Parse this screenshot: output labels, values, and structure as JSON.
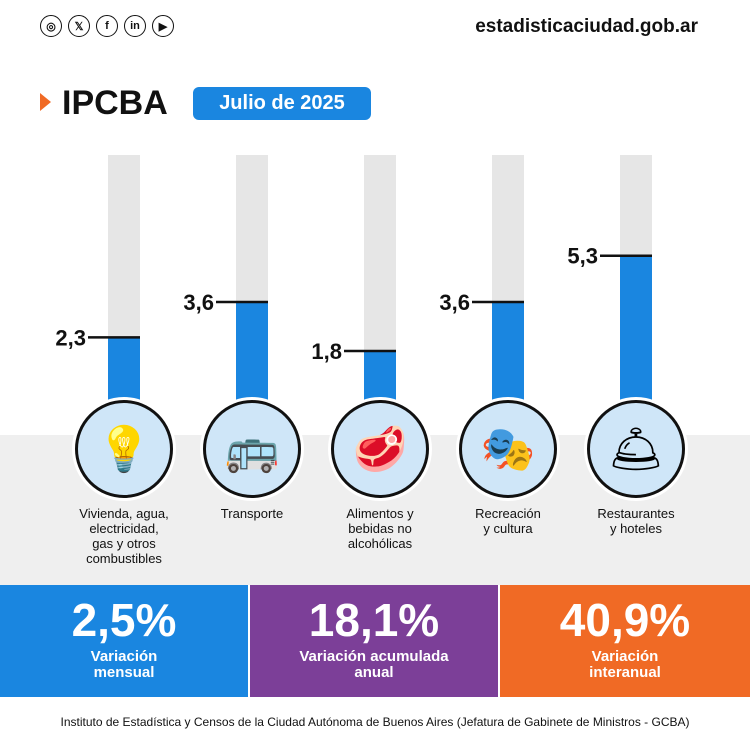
{
  "header": {
    "site": "estadisticaciudad.gob.ar",
    "social_icons": [
      "instagram-icon",
      "x-icon",
      "facebook-icon",
      "linkedin-icon",
      "youtube-icon"
    ],
    "title": "IPCBA",
    "period": "Julio de 2025"
  },
  "colors": {
    "bar": "#1a86e0",
    "track": "#e6e6e6",
    "accent": "#f06a25",
    "purple": "#7c3f98"
  },
  "chart_data": {
    "type": "bar",
    "categories": [
      "Vivienda, agua, electricidad, gas y otros combustibles",
      "Transporte",
      "Alimentos y bebidas no alcohólicas",
      "Recreación y cultura",
      "Restaurantes y hoteles"
    ],
    "values": [
      2.3,
      3.6,
      1.8,
      3.6,
      5.3
    ],
    "value_labels": [
      "2,3",
      "3,6",
      "1,8",
      "3,6",
      "5,3"
    ],
    "ylim": [
      0,
      9
    ],
    "grid": false
  },
  "categories_display": [
    {
      "lines": "Vivienda, agua,\nelectricidad,\ngas y otros\ncombustibles",
      "icon": "lightbulb-icon",
      "glyph": "💡"
    },
    {
      "lines": "Transporte",
      "icon": "bus-icon",
      "glyph": "🚌"
    },
    {
      "lines": "Alimentos y\nbebidas no\nalcohólicas",
      "icon": "meat-icon",
      "glyph": "🥩"
    },
    {
      "lines": "Recreación\ny cultura",
      "icon": "theater-masks-icon",
      "glyph": "🎭"
    },
    {
      "lines": "Restaurantes\ny hoteles",
      "icon": "service-bell-icon",
      "glyph": "🛎"
    }
  ],
  "summary": [
    {
      "value": "2,5%",
      "label": "Variación mensual",
      "color": "#1a86e0"
    },
    {
      "value": "18,1%",
      "label": "Variación acumulada anual",
      "color": "#7c3f98"
    },
    {
      "value": "40,9%",
      "label": "Variación interanual",
      "color": "#f06a25"
    }
  ],
  "footer": "Instituto de Estadística y Censos de la Ciudad Autónoma de Buenos Aires (Jefatura de Gabinete de Ministros - GCBA)"
}
